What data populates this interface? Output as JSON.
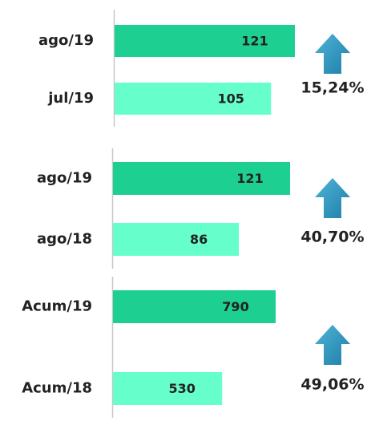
{
  "chart_data": [
    {
      "type": "bar",
      "orientation": "horizontal",
      "categories": [
        "ago/19",
        "jul/19"
      ],
      "values": [
        121,
        105
      ],
      "colors": [
        "#1ecf92",
        "#66ffcc"
      ],
      "change": 15.24,
      "change_label": "15,24%"
    },
    {
      "type": "bar",
      "orientation": "horizontal",
      "categories": [
        "ago/19",
        "ago/18"
      ],
      "values": [
        121,
        86
      ],
      "colors": [
        "#1ecf92",
        "#66ffcc"
      ],
      "change": 40.7,
      "change_label": "40,70%"
    },
    {
      "type": "bar",
      "orientation": "horizontal",
      "categories": [
        "Acum/19",
        "Acum/18"
      ],
      "values": [
        790,
        530
      ],
      "colors": [
        "#1ecf92",
        "#66ffcc"
      ],
      "change": 49.06,
      "change_label": "49,06%"
    }
  ]
}
